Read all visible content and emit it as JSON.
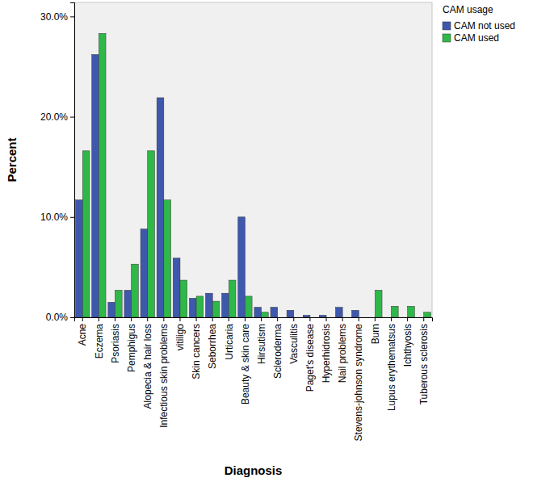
{
  "chart_data": {
    "type": "bar",
    "x_label": "Diagnosis",
    "y_label": "Percent",
    "legend_title": "CAM usage",
    "legend": "right",
    "categories": [
      "Acne",
      "Eczema",
      "Psoriasis",
      "Pemphigus",
      "Alopecia & hair loss",
      "Infectious skin problems",
      "vitiligo",
      "Skin cancers",
      "Seborrhea",
      "Urticaria",
      "Beauty & skin care",
      "Hirsutism",
      "Scleroderma",
      "Vasculitis",
      "Paget's disease",
      "Hyperhidrosis",
      "Nail problems",
      "Stevens-johnson syndrome",
      "Burn",
      "Lupus erythematsus",
      "Ichthyosis",
      "Tuberous sclerosis"
    ],
    "series": [
      {
        "name": "CAM not used",
        "color": "#3e58ac",
        "values": [
          11.7,
          26.2,
          1.5,
          2.7,
          8.8,
          21.9,
          5.9,
          1.9,
          2.4,
          2.4,
          10.0,
          1.0,
          1.0,
          0.7,
          0.2,
          0.2,
          1.0,
          0.7,
          0,
          0,
          0,
          0
        ]
      },
      {
        "name": "CAM used",
        "color": "#2eb848",
        "values": [
          16.6,
          28.3,
          2.7,
          5.3,
          16.6,
          11.7,
          3.7,
          2.1,
          1.6,
          3.7,
          2.1,
          0.5,
          0,
          0,
          0,
          0,
          0,
          0,
          2.7,
          1.1,
          1.1,
          0.5
        ]
      }
    ],
    "ylim": [
      0,
      31.4
    ],
    "yticks": [
      {
        "value": 0,
        "label": "0.0%"
      },
      {
        "value": 10,
        "label": "10.0%"
      },
      {
        "value": 20,
        "label": "20.0%"
      },
      {
        "value": 30,
        "label": "30.0%"
      }
    ],
    "grid": false
  }
}
